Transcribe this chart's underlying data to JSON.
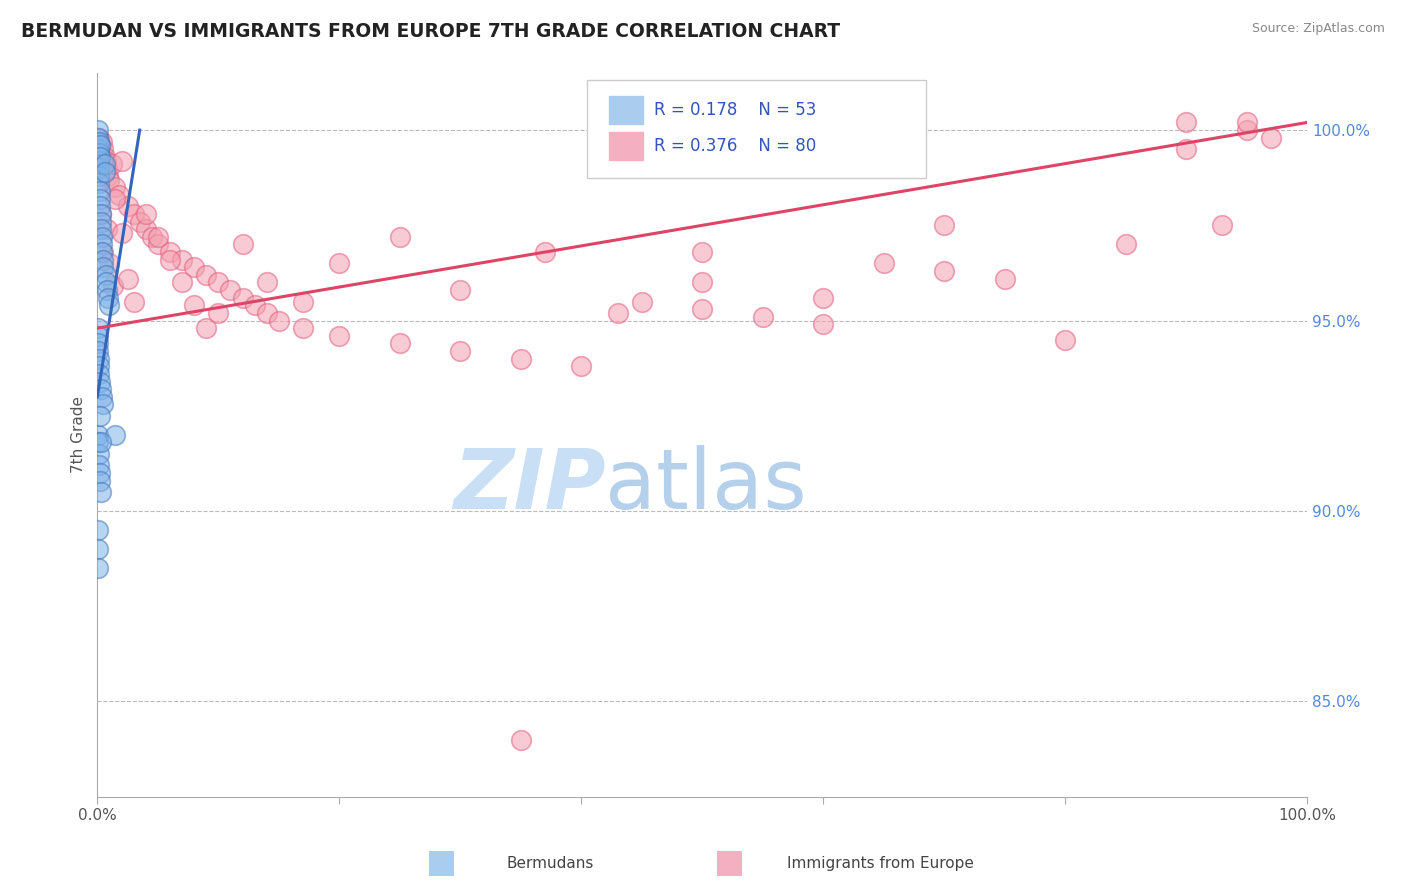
{
  "title": "BERMUDAN VS IMMIGRANTS FROM EUROPE 7TH GRADE CORRELATION CHART",
  "source": "Source: ZipAtlas.com",
  "ylabel": "7th Grade",
  "watermark_zip": "ZIP",
  "watermark_atlas": "atlas",
  "legend_R1": "0.178",
  "legend_N1": "53",
  "legend_R2": "0.376",
  "legend_N2": "80",
  "blue_face": "#7fb3e8",
  "blue_edge": "#4477bb",
  "pink_face": "#f4a0b0",
  "pink_edge": "#e06080",
  "blue_line": "#3366bb",
  "pink_line": "#dd4466",
  "bg_color": "#ffffff",
  "grid_color": "#bbbbbb",
  "ytick_color": "#5588dd",
  "title_color": "#222222",
  "source_color": "#888888",
  "ylabel_color": "#555555",
  "xtick_color": "#555555",
  "legend_text_color": "#3355bb",
  "legend_border": "#cccccc",
  "watermark_color": "#c8dff5",
  "bottom_label_color": "#444444",
  "xlim": [
    0,
    100
  ],
  "ylim": [
    82.5,
    101.5
  ],
  "ytick_positions": [
    85,
    90,
    95,
    100
  ],
  "ytick_labels": [
    "85.0%",
    "90.0%",
    "95.0%",
    "100.0%"
  ],
  "berm_x": [
    0.05,
    0.05,
    0.05,
    0.1,
    0.1,
    0.1,
    0.15,
    0.15,
    0.15,
    0.2,
    0.2,
    0.2,
    0.25,
    0.25,
    0.3,
    0.3,
    0.3,
    0.4,
    0.4,
    0.4,
    0.5,
    0.5,
    0.6,
    0.6,
    0.7,
    0.7,
    0.8,
    0.9,
    1.0,
    0.05,
    0.05,
    0.05,
    0.05,
    0.1,
    0.1,
    0.15,
    0.2,
    0.3,
    0.4,
    0.5,
    0.05,
    0.05,
    0.1,
    0.15,
    0.2,
    0.25,
    0.3,
    0.05,
    0.05,
    0.05,
    1.5,
    0.2,
    0.3
  ],
  "berm_y": [
    100.0,
    99.8,
    99.5,
    99.7,
    99.4,
    99.2,
    99.0,
    98.8,
    98.6,
    98.4,
    98.2,
    98.0,
    99.6,
    99.3,
    97.8,
    97.6,
    97.4,
    97.2,
    97.0,
    96.8,
    96.6,
    96.4,
    99.1,
    98.9,
    96.2,
    96.0,
    95.8,
    95.6,
    95.4,
    94.8,
    94.6,
    94.4,
    94.2,
    94.0,
    93.8,
    93.6,
    93.4,
    93.2,
    93.0,
    92.8,
    92.0,
    91.8,
    91.5,
    91.2,
    91.0,
    90.8,
    90.5,
    89.5,
    89.0,
    88.5,
    92.0,
    92.5,
    91.8
  ],
  "euro_x": [
    0.1,
    0.2,
    0.3,
    0.4,
    0.5,
    0.6,
    0.7,
    0.8,
    0.9,
    1.0,
    1.2,
    1.5,
    1.8,
    2.0,
    2.5,
    3.0,
    3.5,
    4.0,
    4.5,
    5.0,
    6.0,
    7.0,
    8.0,
    9.0,
    10.0,
    11.0,
    12.0,
    13.0,
    14.0,
    15.0,
    17.0,
    20.0,
    25.0,
    30.0,
    35.0,
    40.0,
    45.0,
    50.0,
    55.0,
    60.0,
    65.0,
    70.0,
    75.0,
    80.0,
    85.0,
    90.0,
    93.0,
    95.0,
    97.0,
    0.3,
    0.5,
    0.8,
    1.0,
    1.3,
    1.5,
    2.0,
    2.5,
    3.0,
    4.0,
    5.0,
    6.0,
    7.0,
    8.0,
    9.0,
    10.0,
    12.0,
    14.0,
    17.0,
    20.0,
    25.0,
    30.0,
    37.0,
    43.0,
    50.0,
    60.0,
    70.0,
    35.0,
    90.0,
    50.0,
    95.0
  ],
  "euro_y": [
    99.8,
    99.6,
    99.4,
    99.7,
    99.5,
    99.3,
    99.2,
    99.0,
    98.8,
    98.7,
    99.1,
    98.5,
    98.3,
    99.2,
    98.0,
    97.8,
    97.6,
    97.4,
    97.2,
    97.0,
    96.8,
    96.6,
    96.4,
    96.2,
    96.0,
    95.8,
    95.6,
    95.4,
    95.2,
    95.0,
    94.8,
    94.6,
    94.4,
    94.2,
    94.0,
    93.8,
    95.5,
    95.3,
    95.1,
    94.9,
    96.5,
    96.3,
    96.1,
    94.5,
    97.0,
    99.5,
    97.5,
    100.0,
    99.8,
    97.8,
    96.8,
    97.4,
    96.5,
    95.9,
    98.2,
    97.3,
    96.1,
    95.5,
    97.8,
    97.2,
    96.6,
    96.0,
    95.4,
    94.8,
    95.2,
    97.0,
    96.0,
    95.5,
    96.5,
    97.2,
    95.8,
    96.8,
    95.2,
    96.0,
    95.6,
    97.5,
    84.0,
    100.2,
    96.8,
    100.2
  ]
}
